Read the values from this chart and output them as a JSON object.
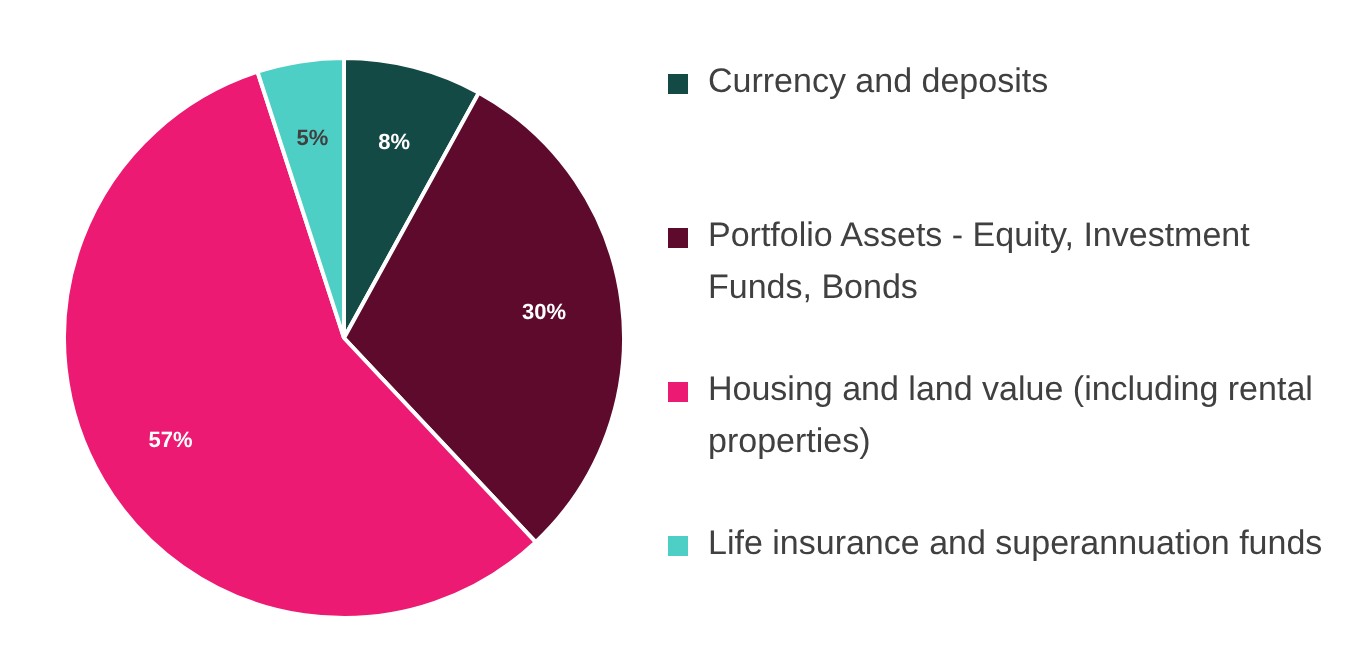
{
  "chart_data": {
    "type": "pie",
    "categories": [
      "Currency and deposits",
      "Portfolio Assets - Equity, Investment Funds, Bonds",
      "Housing and land value (including rental properties)",
      "Life insurance and superannuation funds"
    ],
    "values": [
      8,
      30,
      57,
      5
    ],
    "value_labels": [
      "8%",
      "30%",
      "57%",
      "5%"
    ],
    "colors": [
      "#134a45",
      "#5e0a2c",
      "#ec1a72",
      "#4ecfc5"
    ],
    "legend": "right"
  }
}
